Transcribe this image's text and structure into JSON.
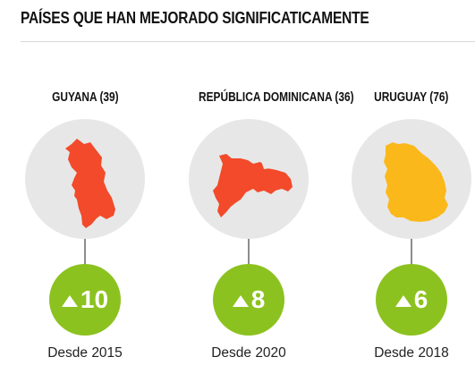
{
  "header": {
    "title": "PAÍSES QUE HAN MEJORADO SIGNIFICATICAMENTE"
  },
  "countries": [
    {
      "name": "GUYANA (39)",
      "change": "10",
      "since": "Desde 2015",
      "map_color": "#f24a2a",
      "map_icon": "guyana-map-icon"
    },
    {
      "name": "REPÚBLICA DOMINICANA (36)",
      "change": "8",
      "since": "Desde 2020",
      "map_color": "#f24a2a",
      "map_icon": "dominican-republic-map-icon"
    },
    {
      "name": "URUGUAY (76)",
      "change": "6",
      "since": "Desde 2018",
      "map_color": "#fbb81b",
      "map_icon": "uruguay-map-icon"
    }
  ],
  "colors": {
    "circle": "#e7e7e7",
    "badge": "#8cc21f",
    "stem": "#8d8d8d",
    "rule": "#d8d8d8"
  }
}
